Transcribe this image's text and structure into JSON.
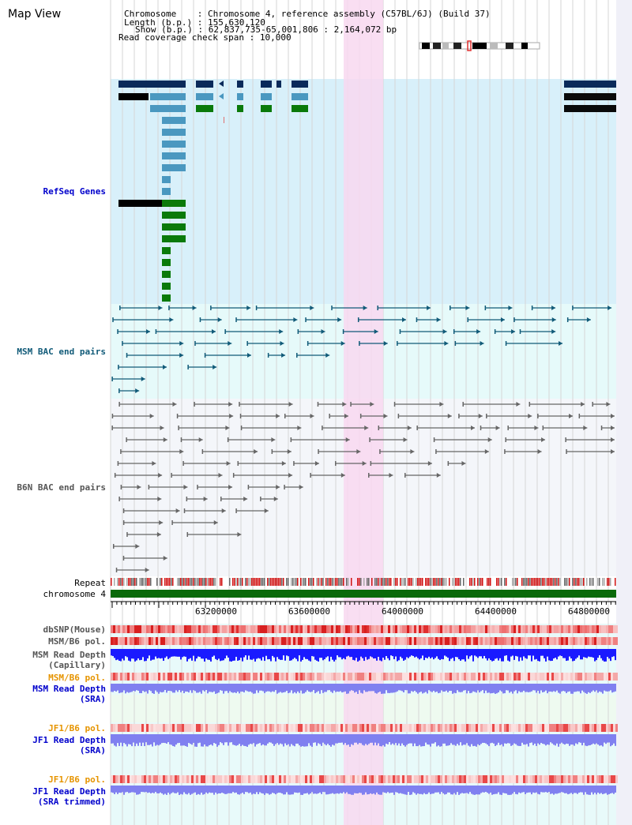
{
  "title": "Map View",
  "info": {
    "chromosome_label": "Chromosome",
    "chromosome_value": "Chromosome 4, reference assembly (C57BL/6J) (Build 37)",
    "length_label": "Length (b.p.)",
    "length_value": "155,630,120",
    "show_label": "Show (b.p.)",
    "show_value": "62,837,735-65,001,806 : 2,164,072 bp",
    "coverage_label": "Read coverage check span",
    "coverage_value": "10,000"
  },
  "tracks": {
    "refseq": "RefSeq Genes",
    "msm_bac": "MSM BAC end pairs",
    "b6n_bac": "B6N BAC end pairs",
    "repeat": "Repeat",
    "chromosome": "chromosome 4",
    "dbsnp": "dbSNP(Mouse)",
    "msm_b6_pol_1": "MSM/B6 pol.",
    "msm_read_depth_cap_1": "MSM Read Depth",
    "msm_read_depth_cap_2": "(Capillary)",
    "msm_b6_pol_2": "MSM/B6 pol.",
    "msm_read_depth_sra_1": "MSM Read Depth",
    "msm_read_depth_sra_2": "(SRA)",
    "jf1_b6_pol_1": "JF1/B6 pol.",
    "jf1_read_depth_sra_1": "JF1 Read Depth",
    "jf1_read_depth_sra_2": "(SRA)",
    "jf1_b6_pol_2": "JF1/B6 pol.",
    "jf1_read_depth_trim_1": "JF1 Read Depth",
    "jf1_read_depth_trim_2": "(SRA trimmed)"
  },
  "axis_ticks": [
    "63200000",
    "63600000",
    "64000000",
    "64400000",
    "64800000"
  ],
  "colors": {
    "refseq_bg": "#d8f0fa",
    "msm_bg": "#e6fafa",
    "b6n_bg": "#f4f6fa",
    "highlight": "#f8d8f0",
    "gene_dark": "#0a2a5a",
    "gene_mid": "#4a98c0",
    "gene_green": "#0a7a0a",
    "msm_line": "#105a78",
    "b6n_line": "#666666",
    "chromosome_bar": "#0a6a0a",
    "pol_red": "#e03030",
    "depth_dark_blue": "#1a1aff",
    "depth_light_blue": "#8080f0"
  }
}
